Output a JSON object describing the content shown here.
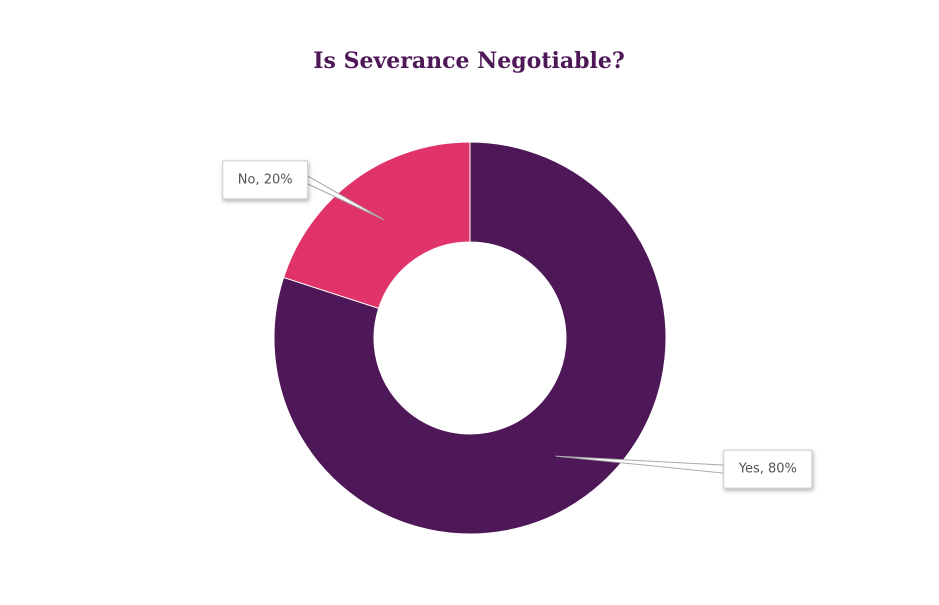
{
  "chart_data": {
    "type": "donut",
    "title": "Is Severance Negotiable?",
    "categories": [
      "Yes",
      "No"
    ],
    "values": [
      80,
      20
    ],
    "value_labels": [
      "Yes, 80%",
      "No, 20%"
    ],
    "colors": [
      "#4e1757",
      "#e0336a"
    ]
  }
}
